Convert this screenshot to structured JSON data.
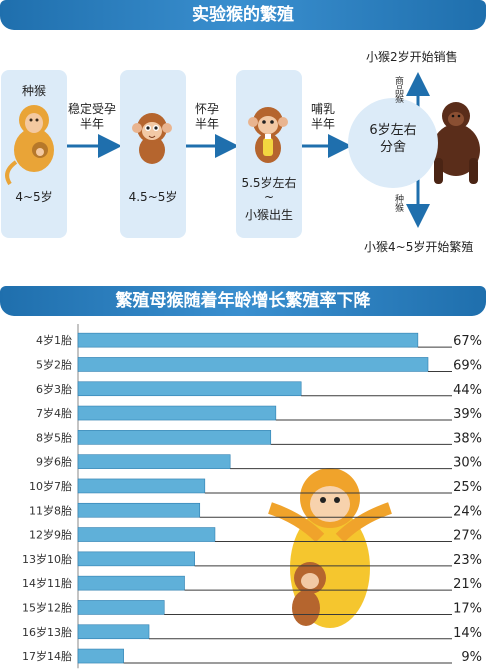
{
  "section1": {
    "title": "实验猴的繁殖",
    "stages": [
      {
        "top": "种猴",
        "bottom": "4~5岁"
      },
      {
        "bottom": "4.5~5岁"
      },
      {
        "bottom_lines": [
          "5.5岁左右",
          "~",
          "小猴出生"
        ]
      }
    ],
    "arrows": [
      {
        "lines": [
          "稳定受孕",
          "半年"
        ]
      },
      {
        "lines": [
          "怀孕",
          "半年"
        ]
      },
      {
        "lines": [
          "哺乳",
          "半年"
        ]
      }
    ],
    "circle_lines": [
      "6岁左右",
      "分舍"
    ],
    "up_vertical": "商品猴",
    "up_text": "小猴2岁开始销售",
    "down_vertical": "种猴",
    "down_text": "小猴4~5岁开始繁殖"
  },
  "section2": {
    "title": "繁殖母猴随着年龄增长繁殖率下降"
  },
  "chart_data": {
    "type": "bar",
    "orientation": "horizontal",
    "title": "繁殖母猴随着年龄增长繁殖率下降",
    "categories": [
      "4岁1胎",
      "5岁2胎",
      "6岁3胎",
      "7岁4胎",
      "8岁5胎",
      "9岁6胎",
      "10岁7胎",
      "11岁8胎",
      "12岁9胎",
      "13岁10胎",
      "14岁11胎",
      "15岁12胎",
      "16岁13胎",
      "17岁14胎"
    ],
    "values": [
      67,
      69,
      44,
      39,
      38,
      30,
      25,
      24,
      27,
      23,
      21,
      17,
      14,
      9
    ],
    "value_labels": [
      "67%",
      "69%",
      "44%",
      "39%",
      "38%",
      "30%",
      "25%",
      "24%",
      "27%",
      "23%",
      "21%",
      "17%",
      "14%",
      "9%"
    ],
    "xlim": [
      0,
      69
    ],
    "colors": {
      "bar": "#5fb0d9",
      "bar_edge": "#2f7fb0",
      "leader": "#3a3a3a"
    }
  }
}
